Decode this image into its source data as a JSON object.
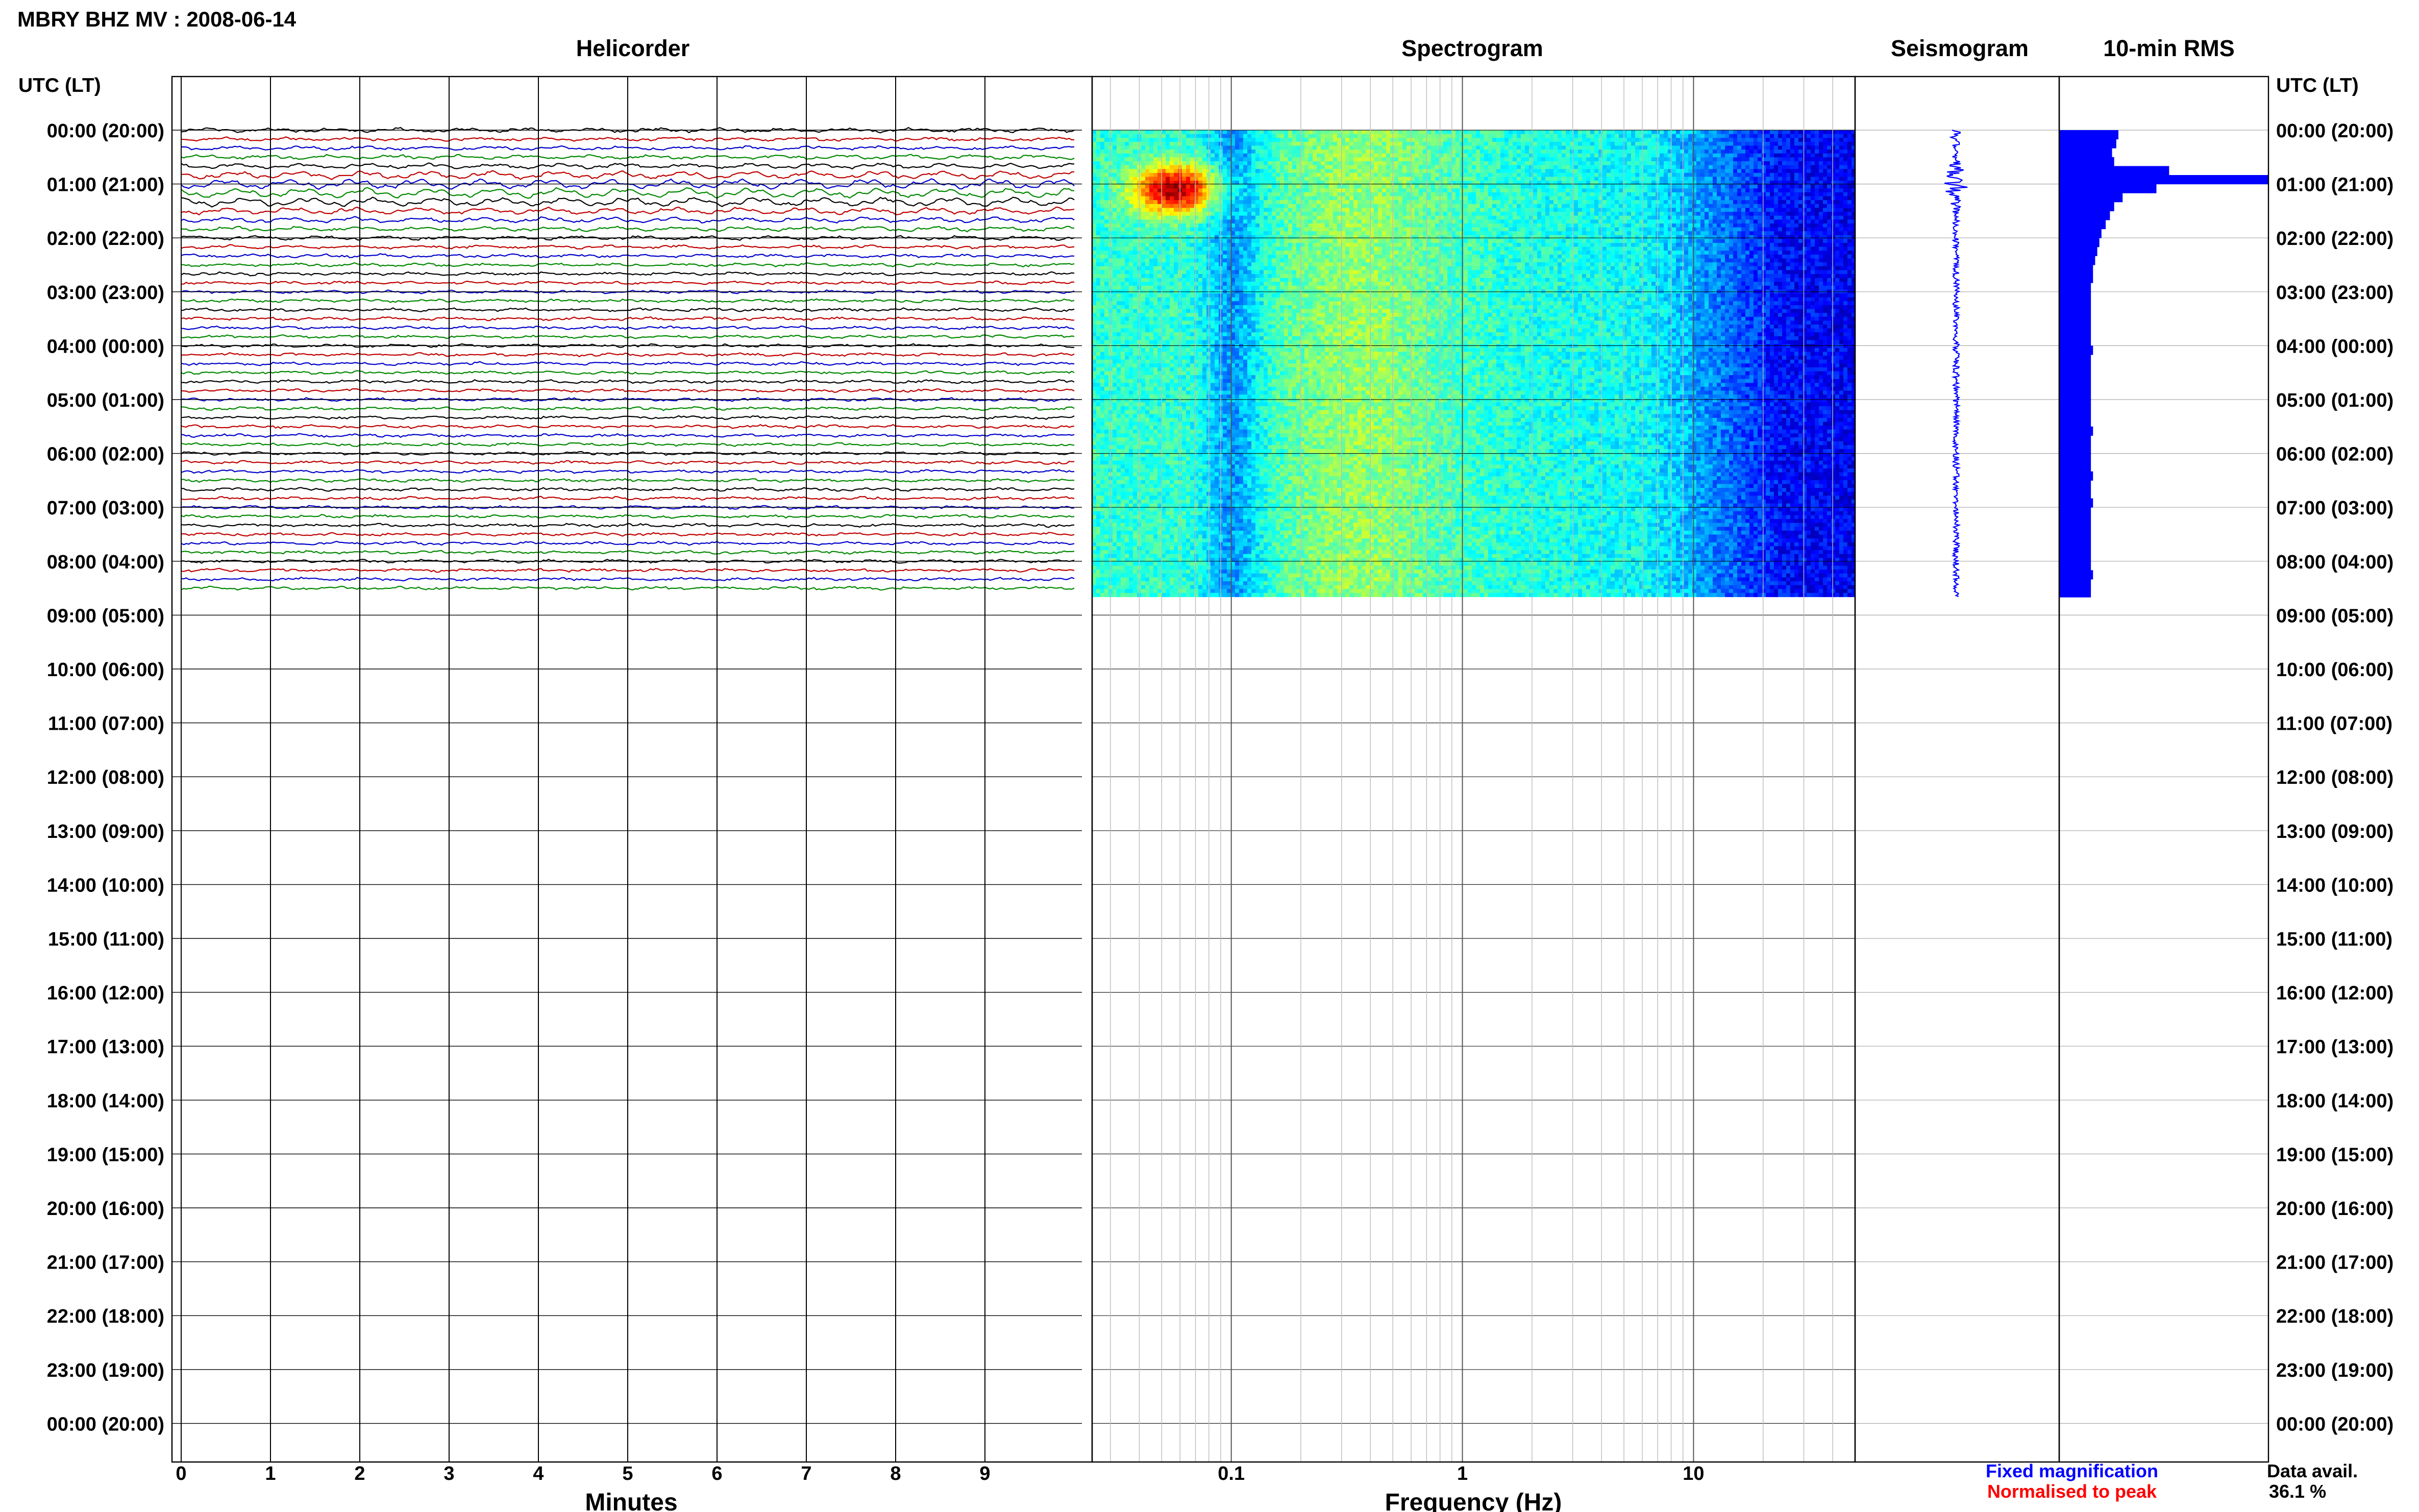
{
  "header": {
    "station_title": "MBRY BHZ MV : 2008-06-14",
    "left_axis_label": "UTC (LT)",
    "right_axis_label": "UTC (LT)"
  },
  "panels": {
    "helicorder": "Helicorder",
    "spectrogram": "Spectrogram",
    "seismogram": "Seismogram",
    "rms": "10-min RMS"
  },
  "footer": {
    "minutes_label": "Minutes",
    "frequency_label": "Frequency (Hz)",
    "legend_fixed": "Fixed magnification",
    "legend_normalised": "Normalised to peak",
    "data_avail_label": "Data avail.",
    "data_avail_value": "36.1 %"
  },
  "colors": {
    "fixed": "#0000ff",
    "normalised": "#ff0000",
    "trace_cycle": [
      "#000000",
      "#c00000",
      "#0000cc",
      "#008800"
    ],
    "seismogram": "#0000ff",
    "rms_bars": "#0000ff"
  },
  "chart_data": {
    "type": "helicorder",
    "time_labels": [
      "00:00 (20:00)",
      "01:00 (21:00)",
      "02:00 (22:00)",
      "03:00 (23:00)",
      "04:00 (00:00)",
      "05:00 (01:00)",
      "06:00 (02:00)",
      "07:00 (03:00)",
      "08:00 (04:00)",
      "09:00 (05:00)",
      "10:00 (06:00)",
      "11:00 (07:00)",
      "12:00 (08:00)",
      "13:00 (09:00)",
      "14:00 (10:00)",
      "15:00 (11:00)",
      "16:00 (12:00)",
      "17:00 (13:00)",
      "18:00 (14:00)",
      "19:00 (15:00)",
      "20:00 (16:00)",
      "21:00 (17:00)",
      "22:00 (18:00)",
      "23:00 (19:00)",
      "00:00 (20:00)"
    ],
    "data_end_hours": 8.66,
    "helicorder": {
      "x_ticks": [
        0,
        1,
        2,
        3,
        4,
        5,
        6,
        7,
        8,
        9
      ],
      "x_range_minutes": [
        0,
        10
      ],
      "line_minutes": 10,
      "trace_amplitudes": [
        0.4,
        0.3,
        0.35,
        0.4,
        0.5,
        0.8,
        1.0,
        1.0,
        0.9,
        0.7,
        0.55,
        0.45,
        0.35,
        0.3,
        0.3,
        0.3,
        0.25,
        0.25,
        0.25,
        0.25,
        0.25,
        0.25,
        0.25,
        0.25,
        0.25,
        0.25,
        0.25,
        0.25,
        0.25,
        0.25,
        0.25,
        0.25,
        0.25,
        0.25,
        0.25,
        0.25,
        0.25,
        0.25,
        0.25,
        0.25,
        0.25,
        0.25,
        0.25,
        0.25,
        0.25,
        0.25,
        0.25,
        0.25,
        0.25,
        0.25,
        0.25,
        0.25
      ]
    },
    "spectrogram": {
      "x_scale": "log",
      "x_range_hz": [
        0.025,
        50
      ],
      "x_ticks": [
        0.1,
        1,
        10
      ]
    },
    "rms_10min": [
      0.28,
      0.27,
      0.25,
      0.26,
      0.52,
      0.99,
      0.46,
      0.3,
      0.26,
      0.24,
      0.22,
      0.2,
      0.19,
      0.18,
      0.17,
      0.16,
      0.16,
      0.15,
      0.15,
      0.15,
      0.15,
      0.15,
      0.15,
      0.15,
      0.16,
      0.15,
      0.15,
      0.15,
      0.15,
      0.15,
      0.15,
      0.15,
      0.15,
      0.16,
      0.15,
      0.15,
      0.15,
      0.15,
      0.16,
      0.15,
      0.15,
      0.16,
      0.15,
      0.15,
      0.15,
      0.15,
      0.15,
      0.15,
      0.15,
      0.16,
      0.15,
      0.15
    ]
  }
}
